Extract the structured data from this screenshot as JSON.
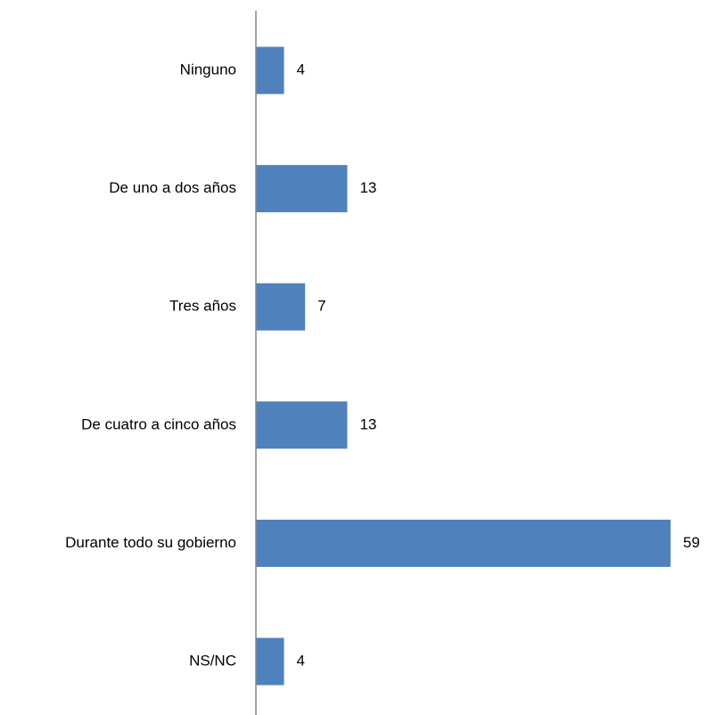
{
  "chart_data": {
    "type": "bar",
    "orientation": "horizontal",
    "categories": [
      "Ninguno",
      "De uno a dos años",
      "Tres años",
      "De cuatro a cinco años",
      "Durante todo su gobierno",
      "NS/NC"
    ],
    "values": [
      4,
      13,
      7,
      13,
      59,
      4
    ],
    "data_labels": [
      "4",
      "13",
      "7",
      "13",
      "59",
      "4"
    ],
    "title": "",
    "xlabel": "",
    "ylabel": "",
    "xlim": [
      0,
      59
    ],
    "grid": false,
    "legend": "none",
    "bar_color": "#4F81BD",
    "axis_color": "#868686"
  }
}
